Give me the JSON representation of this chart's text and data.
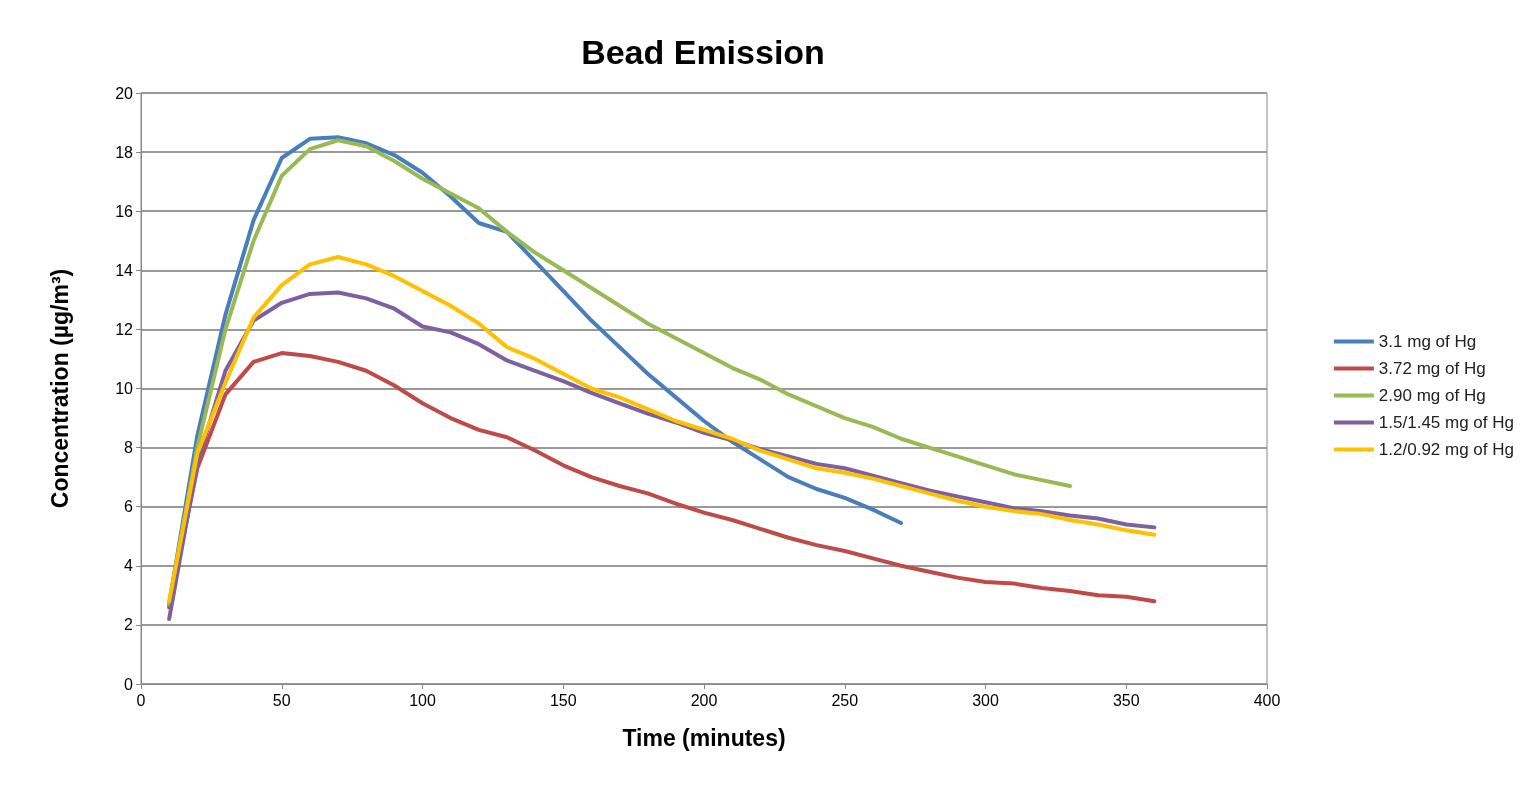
{
  "chart_data": {
    "type": "line",
    "title": "Bead Emission",
    "xlabel": "Time (minutes)",
    "ylabel": "Concentration (µg/m³)",
    "x": [
      10,
      20,
      30,
      40,
      50,
      60,
      70,
      80,
      90,
      100,
      110,
      120,
      130,
      140,
      150,
      160,
      170,
      180,
      190,
      200,
      210,
      220,
      230,
      240,
      250,
      260,
      270,
      280,
      290,
      300,
      310,
      320,
      330,
      340,
      350,
      360
    ],
    "series": [
      {
        "name": "3.1 mg of Hg",
        "color": "#4a7ebb",
        "values": [
          2.7,
          8.4,
          12.5,
          15.7,
          17.8,
          18.45,
          18.5,
          18.3,
          17.9,
          17.3,
          16.5,
          15.6,
          15.3,
          14.3,
          13.3,
          12.3,
          11.4,
          10.5,
          9.7,
          8.9,
          8.2,
          7.6,
          7.0,
          6.6,
          6.3,
          5.9,
          5.45,
          null,
          null,
          null,
          null,
          null,
          null,
          null,
          null,
          null
        ]
      },
      {
        "name": "3.72 mg of Hg",
        "color": "#be4b48",
        "values": [
          2.6,
          7.3,
          9.8,
          10.9,
          11.2,
          11.1,
          10.9,
          10.6,
          10.1,
          9.5,
          9.0,
          8.6,
          8.35,
          7.9,
          7.4,
          7.0,
          6.7,
          6.45,
          6.1,
          5.8,
          5.55,
          5.25,
          4.95,
          4.7,
          4.5,
          4.25,
          4.0,
          3.8,
          3.6,
          3.45,
          3.4,
          3.25,
          3.15,
          3.0,
          2.95,
          2.8
        ]
      },
      {
        "name": "2.90 mg of Hg",
        "color": "#98b954",
        "values": [
          2.7,
          8.0,
          12.0,
          15.0,
          17.2,
          18.1,
          18.4,
          18.2,
          17.7,
          17.1,
          16.6,
          16.1,
          15.3,
          14.6,
          14.0,
          13.4,
          12.8,
          12.2,
          11.7,
          11.2,
          10.7,
          10.3,
          9.8,
          9.4,
          9.0,
          8.7,
          8.3,
          8.0,
          7.7,
          7.4,
          7.1,
          6.9,
          6.7,
          null,
          null,
          null
        ]
      },
      {
        "name": "1.5/1.45 mg of Hg",
        "color": "#7d60a0",
        "values": [
          2.2,
          7.5,
          10.6,
          12.3,
          12.9,
          13.2,
          13.25,
          13.05,
          12.7,
          12.1,
          11.9,
          11.5,
          10.95,
          10.6,
          10.25,
          9.85,
          9.5,
          9.15,
          8.85,
          8.5,
          8.25,
          7.95,
          7.7,
          7.45,
          7.3,
          7.05,
          6.8,
          6.55,
          6.35,
          6.15,
          5.95,
          5.85,
          5.7,
          5.6,
          5.4,
          5.3
        ]
      },
      {
        "name": "1.2/0.92 mg of Hg",
        "color": "#ffc000",
        "values": [
          2.8,
          7.8,
          10.2,
          12.4,
          13.5,
          14.2,
          14.45,
          14.2,
          13.8,
          13.3,
          12.8,
          12.2,
          11.4,
          11.0,
          10.5,
          10.0,
          9.7,
          9.3,
          8.9,
          8.6,
          8.3,
          7.9,
          7.6,
          7.3,
          7.15,
          6.95,
          6.7,
          6.45,
          6.2,
          6.0,
          5.85,
          5.75,
          5.55,
          5.4,
          5.2,
          5.05
        ]
      }
    ],
    "xlim": [
      0,
      400
    ],
    "xticks": [
      0,
      50,
      100,
      150,
      200,
      250,
      300,
      350,
      400
    ],
    "ylim": [
      0,
      20
    ],
    "yticks": [
      0,
      2,
      4,
      6,
      8,
      10,
      12,
      14,
      16,
      18,
      20
    ],
    "grid": "y",
    "legend": "right",
    "marker": "none",
    "line_style": "solid"
  }
}
